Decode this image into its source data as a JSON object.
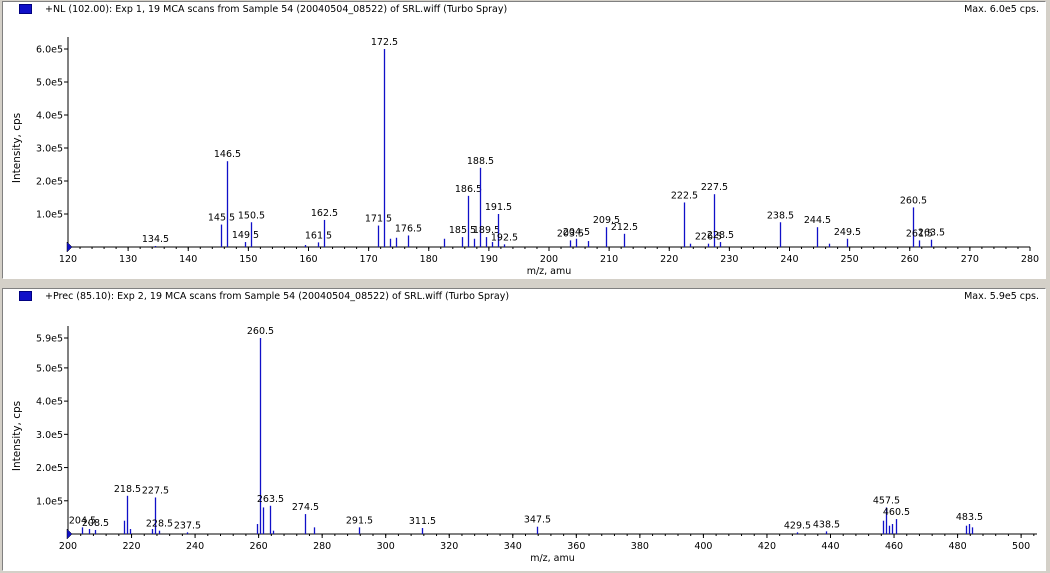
{
  "colors": {
    "series": "#1010c8",
    "axis": "#000000",
    "panel_bg": "#ffffff",
    "window_bg": "#d4d0c8"
  },
  "chart_data": [
    {
      "type": "bar",
      "title": "+NL (102.00): Exp 1, 19 MCA scans from Sample 54 (20040504_08522) of SRL.wiff (Turbo Spray)",
      "max_label": "Max. 6.0e5 cps.",
      "xlabel": "m/z, amu",
      "ylabel": "Intensity, cps",
      "xlim": [
        120,
        280
      ],
      "ylim": [
        0,
        600000
      ],
      "x_ticks": [
        "120",
        "130",
        "140",
        "150",
        "160",
        "170",
        "180",
        "190",
        "200",
        "210",
        "220",
        "230",
        "240",
        "250",
        "260",
        "270",
        "280"
      ],
      "y_ticks": [
        "1.0e5",
        "2.0e5",
        "3.0e5",
        "4.0e5",
        "5.0e5",
        "6.0e5"
      ],
      "peaks": [
        {
          "x": 134.5,
          "y": 3000,
          "label": "134.5"
        },
        {
          "x": 145.5,
          "y": 68000,
          "label": "145.5"
        },
        {
          "x": 146.5,
          "y": 260000,
          "label": "146.5"
        },
        {
          "x": 149.5,
          "y": 15000,
          "label": "149.5"
        },
        {
          "x": 150.5,
          "y": 75000,
          "label": "150.5"
        },
        {
          "x": 159.5,
          "y": 6000,
          "label": ""
        },
        {
          "x": 161.5,
          "y": 14000,
          "label": "161.5"
        },
        {
          "x": 162.5,
          "y": 82000,
          "label": "162.5"
        },
        {
          "x": 171.5,
          "y": 65000,
          "label": "171.5"
        },
        {
          "x": 172.5,
          "y": 600000,
          "label": "172.5"
        },
        {
          "x": 173.5,
          "y": 25000,
          "label": ""
        },
        {
          "x": 174.5,
          "y": 28000,
          "label": ""
        },
        {
          "x": 176.5,
          "y": 35000,
          "label": "176.5"
        },
        {
          "x": 182.5,
          "y": 25000,
          "label": ""
        },
        {
          "x": 185.5,
          "y": 30000,
          "label": "185.5"
        },
        {
          "x": 186.5,
          "y": 155000,
          "label": "186.5"
        },
        {
          "x": 187.5,
          "y": 25000,
          "label": ""
        },
        {
          "x": 188.5,
          "y": 240000,
          "label": "188.5"
        },
        {
          "x": 189.5,
          "y": 30000,
          "label": "189.5"
        },
        {
          "x": 190.5,
          "y": 15000,
          "label": ""
        },
        {
          "x": 191.5,
          "y": 100000,
          "label": "191.5"
        },
        {
          "x": 192.5,
          "y": 8000,
          "label": "192.5"
        },
        {
          "x": 203.5,
          "y": 20000,
          "label": "203.5"
        },
        {
          "x": 204.5,
          "y": 25000,
          "label": "204.5"
        },
        {
          "x": 206.5,
          "y": 18000,
          "label": ""
        },
        {
          "x": 209.5,
          "y": 60000,
          "label": "209.5"
        },
        {
          "x": 212.5,
          "y": 40000,
          "label": "212.5"
        },
        {
          "x": 222.5,
          "y": 135000,
          "label": "222.5"
        },
        {
          "x": 223.5,
          "y": 10000,
          "label": ""
        },
        {
          "x": 226.5,
          "y": 10000,
          "label": "226.5"
        },
        {
          "x": 227.5,
          "y": 160000,
          "label": "227.5"
        },
        {
          "x": 228.5,
          "y": 15000,
          "label": "228.5"
        },
        {
          "x": 238.5,
          "y": 75000,
          "label": "238.5"
        },
        {
          "x": 244.5,
          "y": 60000,
          "label": "244.5"
        },
        {
          "x": 246.5,
          "y": 10000,
          "label": ""
        },
        {
          "x": 249.5,
          "y": 25000,
          "label": "249.5"
        },
        {
          "x": 260.5,
          "y": 120000,
          "label": "260.5"
        },
        {
          "x": 261.5,
          "y": 20000,
          "label": "261.5"
        },
        {
          "x": 263.5,
          "y": 22000,
          "label": "263.5"
        }
      ]
    },
    {
      "type": "bar",
      "title": "+Prec (85.10): Exp 2, 19 MCA scans from Sample 54 (20040504_08522) of SRL.wiff (Turbo Spray)",
      "max_label": "Max. 5.9e5 cps.",
      "xlabel": "m/z, amu",
      "ylabel": "Intensity, cps",
      "xlim": [
        200,
        505
      ],
      "ylim": [
        0,
        590000
      ],
      "x_ticks": [
        "200",
        "220",
        "240",
        "260",
        "280",
        "300",
        "320",
        "340",
        "360",
        "380",
        "400",
        "420",
        "440",
        "460",
        "480",
        "500"
      ],
      "y_ticks": [
        "1.0e5",
        "2.0e5",
        "3.0e5",
        "4.0e5",
        "5.0e5",
        "5.9e5"
      ],
      "peaks": [
        {
          "x": 204.5,
          "y": 20000,
          "label": "204.5"
        },
        {
          "x": 206.5,
          "y": 15000,
          "label": ""
        },
        {
          "x": 208.5,
          "y": 12000,
          "label": "208.5"
        },
        {
          "x": 217.5,
          "y": 40000,
          "label": ""
        },
        {
          "x": 218.5,
          "y": 115000,
          "label": "218.5"
        },
        {
          "x": 219.5,
          "y": 15000,
          "label": ""
        },
        {
          "x": 226.5,
          "y": 15000,
          "label": ""
        },
        {
          "x": 227.5,
          "y": 110000,
          "label": "227.5"
        },
        {
          "x": 228.5,
          "y": 10000,
          "label": "228.5"
        },
        {
          "x": 237.5,
          "y": 5000,
          "label": "237.5"
        },
        {
          "x": 259.5,
          "y": 30000,
          "label": ""
        },
        {
          "x": 260.5,
          "y": 590000,
          "label": "260.5"
        },
        {
          "x": 261.5,
          "y": 80000,
          "label": ""
        },
        {
          "x": 263.5,
          "y": 85000,
          "label": "263.5"
        },
        {
          "x": 264.5,
          "y": 10000,
          "label": ""
        },
        {
          "x": 274.5,
          "y": 60000,
          "label": "274.5"
        },
        {
          "x": 277.5,
          "y": 20000,
          "label": ""
        },
        {
          "x": 291.5,
          "y": 20000,
          "label": "291.5"
        },
        {
          "x": 311.5,
          "y": 18000,
          "label": "311.5"
        },
        {
          "x": 347.5,
          "y": 22000,
          "label": "347.5"
        },
        {
          "x": 429.5,
          "y": 5000,
          "label": "429.5"
        },
        {
          "x": 438.5,
          "y": 8000,
          "label": "438.5"
        },
        {
          "x": 456.5,
          "y": 40000,
          "label": ""
        },
        {
          "x": 457.5,
          "y": 80000,
          "label": "457.5"
        },
        {
          "x": 458.5,
          "y": 25000,
          "label": ""
        },
        {
          "x": 459.5,
          "y": 30000,
          "label": ""
        },
        {
          "x": 460.5,
          "y": 45000,
          "label": "460.5"
        },
        {
          "x": 482.5,
          "y": 25000,
          "label": ""
        },
        {
          "x": 483.5,
          "y": 30000,
          "label": "483.5"
        },
        {
          "x": 484.5,
          "y": 20000,
          "label": ""
        }
      ]
    }
  ]
}
